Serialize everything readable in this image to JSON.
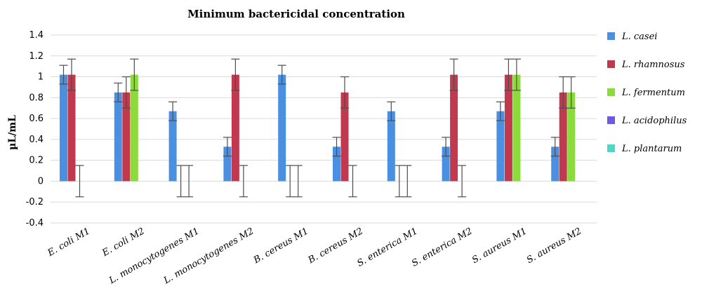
{
  "chart_data": {
    "type": "bar",
    "title": "Minimum bactericidal concentration",
    "ylabel": "µL/mL",
    "xlabel": "",
    "ylim": [
      -0.4,
      1.4
    ],
    "yticks": [
      "1.4",
      "1.2",
      "1",
      "0.8",
      "0.6",
      "0.4",
      "0.2",
      "0",
      "-0.2",
      "-0.4"
    ],
    "grid": true,
    "legend_position": "right",
    "categories": [
      "E. coli M1",
      "E. coli M2",
      "L. monocytogenes M1",
      "L. monocytogenes M2",
      "B. cereus M1",
      "B. cereus M2",
      "S. enterica M1",
      "S. enterica M2",
      "S. aureus M1",
      "S. aureus M2"
    ],
    "series": [
      {
        "name": "L. casei",
        "color": "#4a90e2",
        "values": [
          1.02,
          0.85,
          0.67,
          0.33,
          1.02,
          0.33,
          0.67,
          0.33,
          0.67,
          0.33
        ],
        "error": [
          0.09,
          0.09,
          0.09,
          0.09,
          0.09,
          0.09,
          0.09,
          0.09,
          0.09,
          0.09
        ]
      },
      {
        "name": "L. rhamnosus",
        "color": "#c0394f",
        "values": [
          1.02,
          0.85,
          0,
          1.02,
          0,
          0.85,
          0,
          1.02,
          1.02,
          0.85
        ],
        "error": [
          0.15,
          0.15,
          0.15,
          0.15,
          0.15,
          0.15,
          0.15,
          0.15,
          0.15,
          0.15
        ]
      },
      {
        "name": "L. fermentum",
        "color": "#8cdb3c",
        "values": [
          0,
          1.02,
          0,
          0,
          0,
          0,
          0,
          0,
          1.02,
          0.85
        ],
        "error": [
          0.15,
          0.15,
          0.15,
          0.15,
          0.15,
          0.15,
          0.15,
          0.15,
          0.15,
          0.15
        ]
      },
      {
        "name": "L. acidophilus",
        "color": "#6b5be0",
        "values": [
          0,
          0,
          0,
          0,
          0,
          0,
          0,
          0,
          0,
          0
        ],
        "error": [
          0,
          0,
          0,
          0,
          0,
          0,
          0,
          0,
          0,
          0
        ]
      },
      {
        "name": "L. plantarum",
        "color": "#4fd6c9",
        "values": [
          0,
          0,
          0,
          0,
          0,
          0,
          0,
          0,
          0,
          0
        ],
        "error": [
          0,
          0,
          0,
          0,
          0,
          0,
          0,
          0,
          0,
          0
        ]
      }
    ]
  }
}
